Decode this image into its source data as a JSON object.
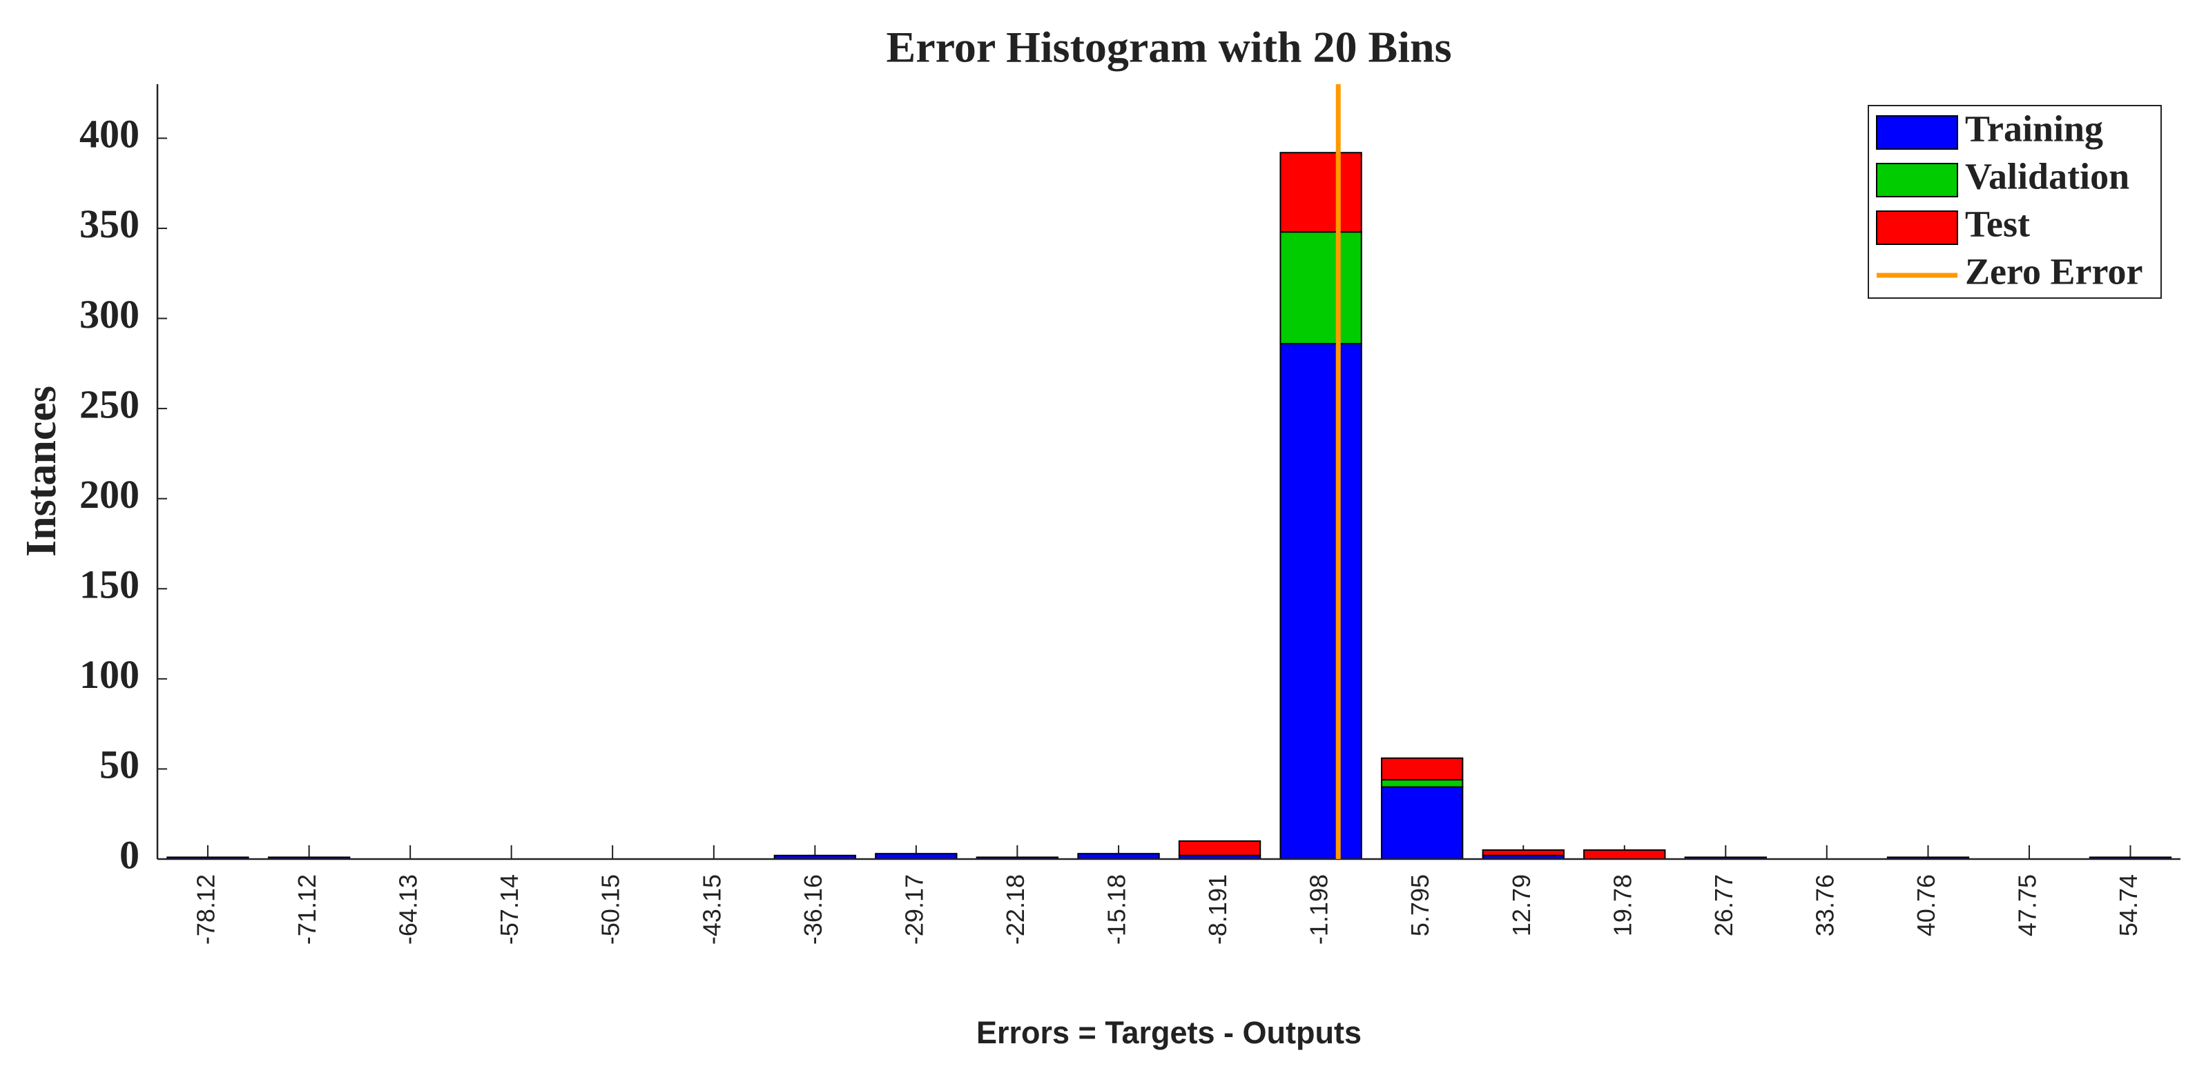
{
  "chart_data": {
    "type": "bar",
    "stacked": true,
    "title": "Error Histogram with 20 Bins",
    "xlabel": "Errors = Targets - Outputs",
    "ylabel": "Instances",
    "x": [
      -78.12,
      -71.12,
      -64.13,
      -57.14,
      -50.15,
      -43.15,
      -36.16,
      -29.17,
      -22.18,
      -15.18,
      -8.191,
      -1.198,
      5.795,
      12.79,
      19.78,
      26.77,
      33.76,
      40.76,
      47.75,
      54.74
    ],
    "series": [
      {
        "name": "Training",
        "color": "#0000ff",
        "values": [
          1,
          1,
          0,
          0,
          0,
          0,
          2,
          3,
          1,
          3,
          2,
          286,
          40,
          2,
          0,
          1,
          0,
          1,
          0,
          1
        ]
      },
      {
        "name": "Validation",
        "color": "#00cc00",
        "values": [
          0,
          0,
          0,
          0,
          0,
          0,
          0,
          0,
          0,
          0,
          0,
          62,
          4,
          0,
          0,
          0,
          0,
          0,
          0,
          0
        ]
      },
      {
        "name": "Test",
        "color": "#ff0000",
        "values": [
          0,
          0,
          0,
          0,
          0,
          0,
          0,
          0,
          0,
          0,
          8,
          44,
          12,
          3,
          5,
          0,
          0,
          0,
          0,
          0
        ]
      }
    ],
    "reference_line": {
      "name": "Zero Error",
      "color": "#ff9900",
      "x": 0
    },
    "xlim": [
      -81.6,
      58.2
    ],
    "xticks": [
      -78.12,
      -71.12,
      -64.13,
      -57.14,
      -50.15,
      -43.15,
      -36.16,
      -29.17,
      -22.18,
      -15.18,
      -8.191,
      -1.198,
      5.795,
      12.79,
      19.78,
      26.77,
      33.76,
      40.76,
      47.75,
      54.74
    ],
    "ylim": [
      0,
      430
    ],
    "yticks": [
      0,
      50,
      100,
      150,
      200,
      250,
      300,
      350,
      400
    ],
    "legend": "top-right"
  }
}
